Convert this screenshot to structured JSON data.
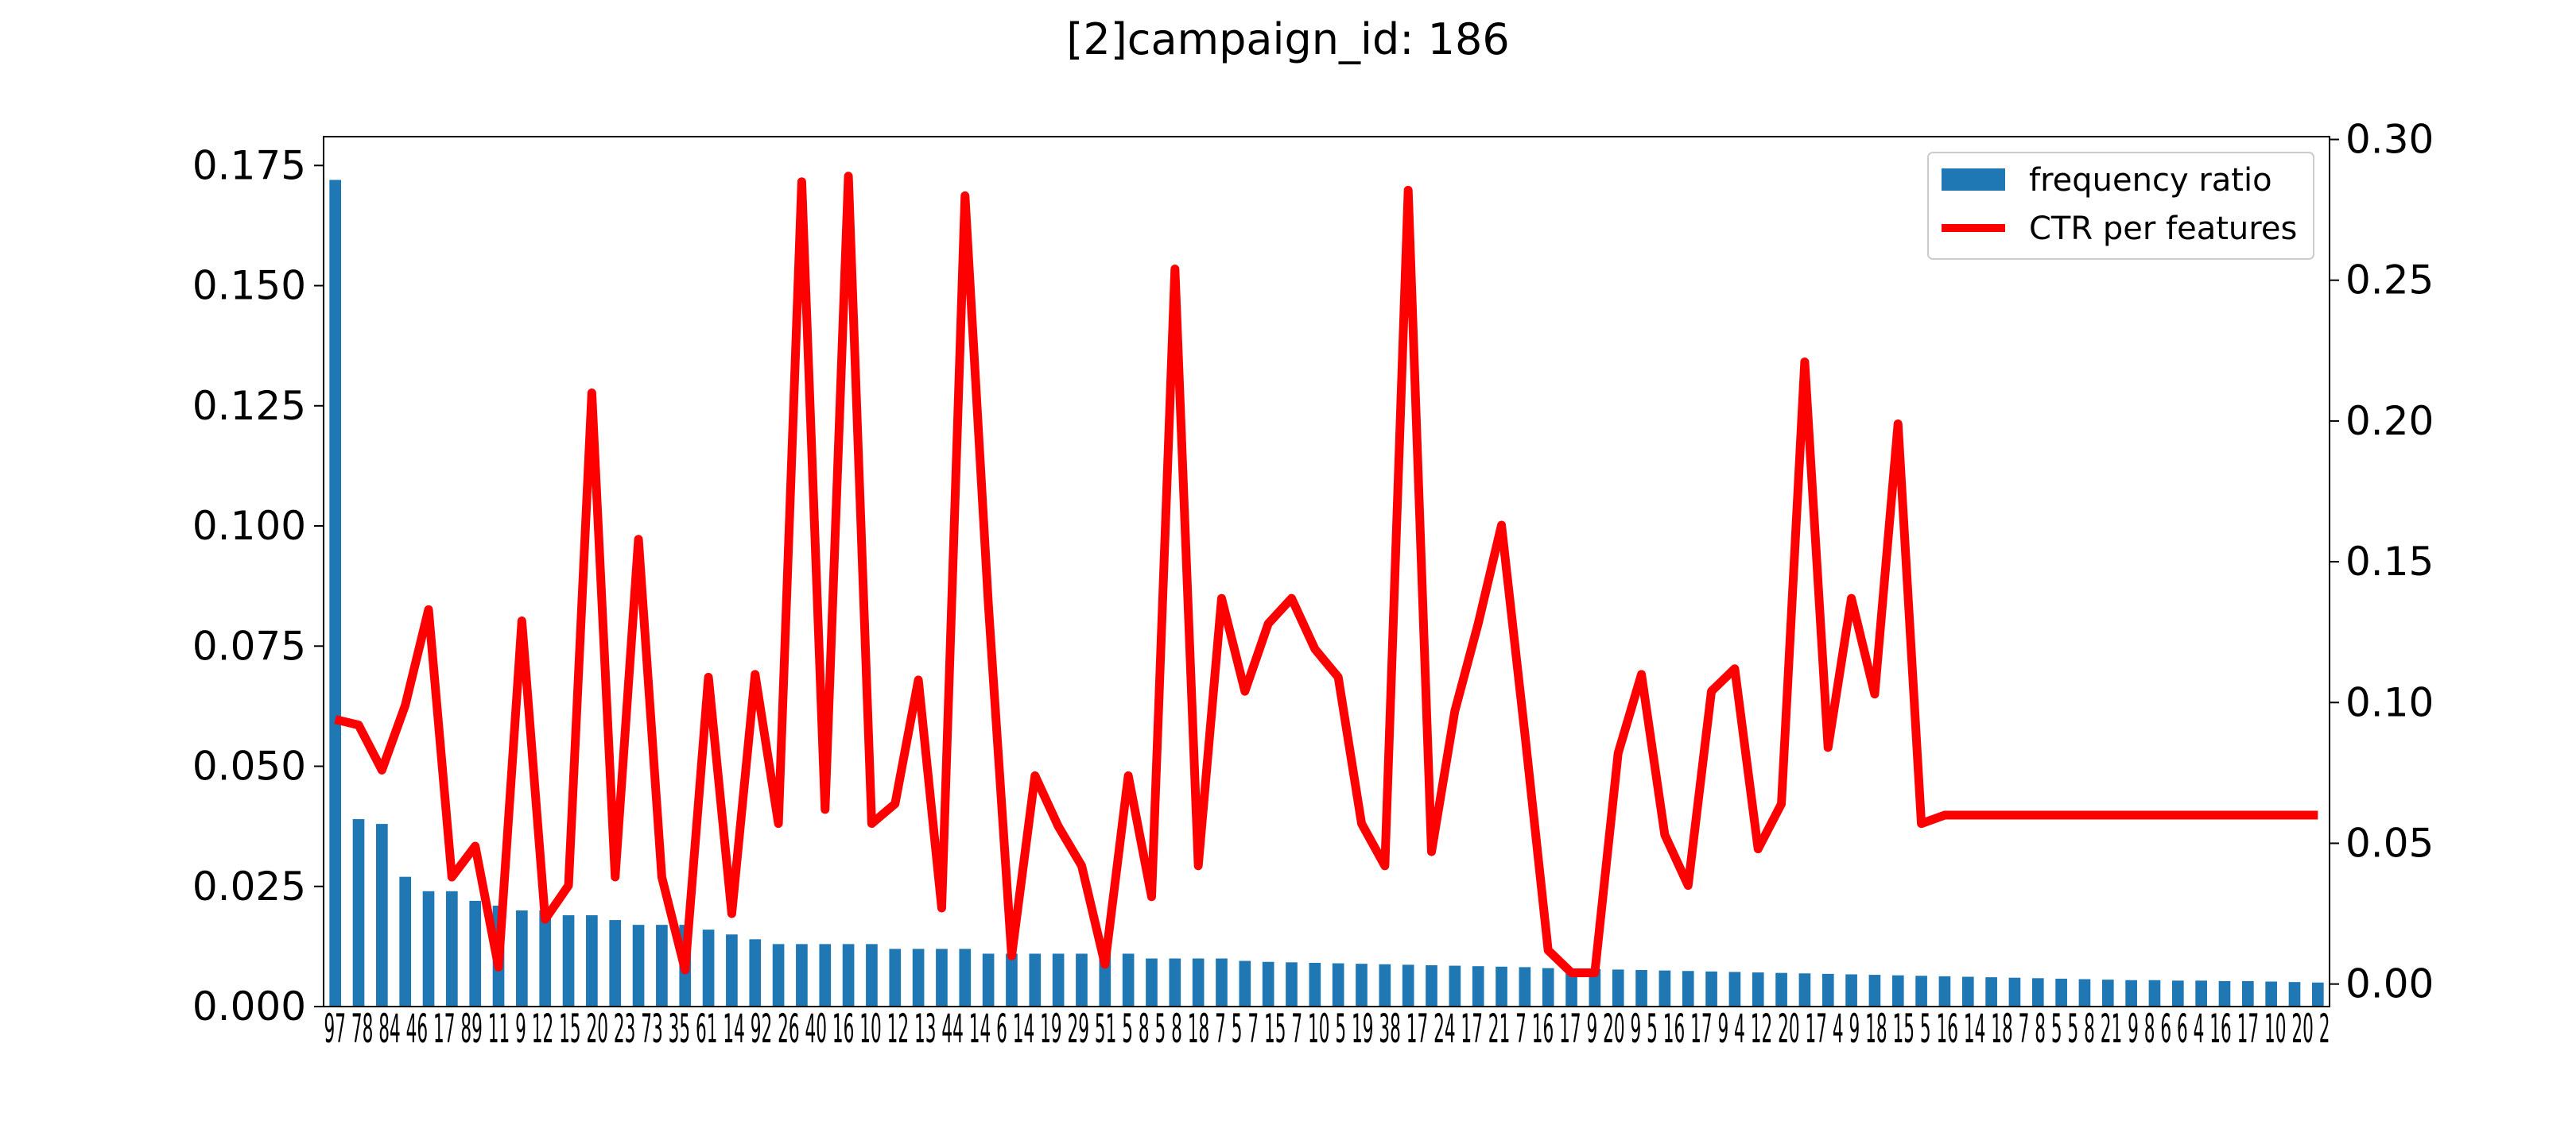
{
  "chart_data": {
    "type": "bar",
    "title": "[2]campaign_id: 186",
    "categories": [
      "97",
      "78",
      "84",
      "46",
      "17",
      "89",
      "11",
      "9",
      "12",
      "15",
      "20",
      "23",
      "73",
      "35",
      "61",
      "14",
      "92",
      "26",
      "40",
      "16",
      "10",
      "12",
      "13",
      "44",
      "14",
      "6",
      "14",
      "19",
      "29",
      "51",
      "5",
      "8",
      "5",
      "8",
      "18",
      "7",
      "5",
      "7",
      "15",
      "7",
      "10",
      "5",
      "19",
      "38",
      "17",
      "24",
      "17",
      "21",
      "7",
      "16",
      "17",
      "9",
      "20",
      "9",
      "5",
      "16",
      "17",
      "9",
      "4",
      "12",
      "20",
      "17",
      "4",
      "9",
      "18",
      "15",
      "5",
      "16",
      "14",
      "18",
      "7",
      "8",
      "5",
      "5",
      "8",
      "21",
      "9",
      "8",
      "6",
      "6",
      "4",
      "16",
      "17",
      "10",
      "20",
      "2"
    ],
    "x_tick_labels_text": "97 78 84 46 17 89 11 9 12 15 20 23 73 35 61 14 92 26 40 16 10 12 13 44 14 6 14 19 29 51 5 8 5 8 18 7 5 7 15 7 10 5 19 38 17 24 17 21 7 16 17 9 20 9 5 16 17 9 4 12 20 17 4 9 18 15 5 16 14 18 7 8 5 5 8 21 9 8 6 6 4 16 17 10 20 2",
    "series": [
      {
        "name": "frequency ratio",
        "type": "bar",
        "axis": "left",
        "color": "#1f77b4",
        "values": [
          0.172,
          0.039,
          0.038,
          0.027,
          0.024,
          0.024,
          0.022,
          0.021,
          0.02,
          0.02,
          0.019,
          0.019,
          0.018,
          0.017,
          0.017,
          0.017,
          0.016,
          0.015,
          0.014,
          0.013,
          0.013,
          0.013,
          0.013,
          0.013,
          0.012,
          0.012,
          0.012,
          0.012,
          0.011,
          0.011,
          0.011,
          0.011,
          0.011,
          0.011,
          0.011,
          0.01,
          0.01,
          0.01,
          0.01,
          0.0095,
          0.0093,
          0.0092,
          0.0091,
          0.009,
          0.0089,
          0.0088,
          0.0087,
          0.0086,
          0.0085,
          0.0084,
          0.0083,
          0.0082,
          0.008,
          0.0079,
          0.0078,
          0.0077,
          0.0076,
          0.0075,
          0.0074,
          0.0073,
          0.0072,
          0.0071,
          0.007,
          0.0069,
          0.0068,
          0.0067,
          0.0066,
          0.0065,
          0.0064,
          0.0063,
          0.0062,
          0.0061,
          0.006,
          0.0059,
          0.0058,
          0.0057,
          0.0056,
          0.0055,
          0.0055,
          0.0054,
          0.0054,
          0.0053,
          0.0053,
          0.0052,
          0.0051,
          0.005
        ]
      },
      {
        "name": "CTR per features",
        "type": "line",
        "axis": "right",
        "color": "#ff0000",
        "values": [
          0.094,
          0.092,
          0.076,
          0.099,
          0.133,
          0.038,
          0.049,
          0.006,
          0.129,
          0.023,
          0.035,
          0.21,
          0.038,
          0.158,
          0.038,
          0.005,
          0.109,
          0.025,
          0.11,
          0.057,
          0.285,
          0.062,
          0.287,
          0.057,
          0.064,
          0.108,
          0.027,
          0.28,
          0.135,
          0.01,
          0.074,
          0.056,
          0.042,
          0.007,
          0.074,
          0.031,
          0.254,
          0.042,
          0.137,
          0.104,
          0.128,
          0.137,
          0.119,
          0.109,
          0.057,
          0.042,
          0.282,
          0.047,
          0.097,
          0.128,
          0.163,
          0.089,
          0.012,
          0.004,
          0.004,
          0.082,
          0.11,
          0.053,
          0.035,
          0.104,
          0.112,
          0.048,
          0.064,
          0.221,
          0.084,
          0.137,
          0.103,
          0.199,
          0.057,
          0.06,
          0.06,
          0.06,
          0.06,
          0.06,
          0.06,
          0.06,
          0.06,
          0.06,
          0.06,
          0.06,
          0.06,
          0.06,
          0.06,
          0.06,
          0.06,
          0.06
        ]
      }
    ],
    "y_left": {
      "ylim": [
        0,
        0.181
      ],
      "ticks": [
        "0.000",
        "0.025",
        "0.050",
        "0.075",
        "0.100",
        "0.125",
        "0.150",
        "0.175"
      ]
    },
    "y_right": {
      "ylim": [
        -0.008,
        0.301
      ],
      "ticks": [
        "0.00",
        "0.05",
        "0.10",
        "0.15",
        "0.20",
        "0.25",
        "0.30"
      ]
    },
    "grid": false,
    "legend_position": "top-right"
  }
}
